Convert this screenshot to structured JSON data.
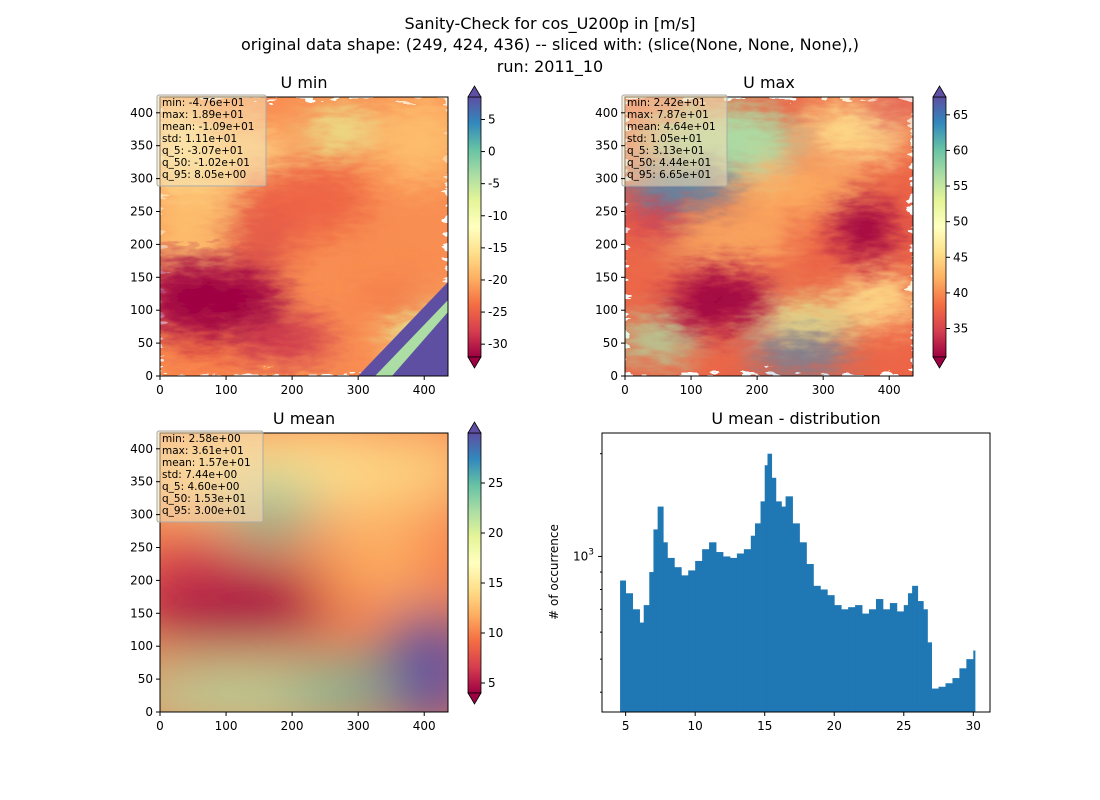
{
  "figure": {
    "title_lines": [
      "Sanity-Check for cos_U200p in [m/s]",
      "original data shape: (249, 424, 436) -- sliced with: (slice(None, None, None),)",
      "run: 2011_10"
    ]
  },
  "colormap": [
    "#9e0142",
    "#d53e4f",
    "#f46d43",
    "#fdae61",
    "#fee08b",
    "#ffffbf",
    "#e6f598",
    "#abdda4",
    "#66c2a5",
    "#3288bd",
    "#5e4fa2"
  ],
  "chart_data": [
    {
      "type": "heatmap",
      "title": "U min",
      "xlim": [
        0,
        436
      ],
      "ylim": [
        0,
        424
      ],
      "xticks": [
        "0",
        "100",
        "200",
        "300",
        "400"
      ],
      "yticks": [
        "0",
        "50",
        "100",
        "150",
        "200",
        "250",
        "300",
        "350",
        "400"
      ],
      "colorbar": {
        "min": -32,
        "max": 8.5,
        "ticks": [
          "-30",
          "-25",
          "-20",
          "-15",
          "-10",
          "-5",
          "0",
          "5"
        ],
        "tick_values": [
          -30,
          -25,
          -20,
          -15,
          -10,
          -5,
          0,
          5
        ]
      },
      "stats": [
        "min: -4.76e+01",
        "max: 1.89e+01",
        "mean: -1.09e+01",
        "std: 1.11e+01",
        "q_5: -3.07e+01",
        "q_50: -1.02e+01",
        "q_95: 8.05e+00"
      ]
    },
    {
      "type": "heatmap",
      "title": "U max",
      "xlim": [
        0,
        436
      ],
      "ylim": [
        0,
        424
      ],
      "xticks": [
        "0",
        "100",
        "200",
        "300",
        "400"
      ],
      "yticks": [
        "0",
        "50",
        "100",
        "150",
        "200",
        "250",
        "300",
        "350",
        "400"
      ],
      "colorbar": {
        "min": 31,
        "max": 67.5,
        "ticks": [
          "35",
          "40",
          "45",
          "50",
          "55",
          "60",
          "65"
        ],
        "tick_values": [
          35,
          40,
          45,
          50,
          55,
          60,
          65
        ]
      },
      "stats": [
        "min: 2.42e+01",
        "max: 7.87e+01",
        "mean: 4.64e+01",
        "std: 1.05e+01",
        "q_5: 3.13e+01",
        "q_50: 4.44e+01",
        "q_95: 6.65e+01"
      ]
    },
    {
      "type": "heatmap",
      "title": "U mean",
      "xlim": [
        0,
        436
      ],
      "ylim": [
        0,
        424
      ],
      "xticks": [
        "0",
        "100",
        "200",
        "300",
        "400"
      ],
      "yticks": [
        "0",
        "50",
        "100",
        "150",
        "200",
        "250",
        "300",
        "350",
        "400"
      ],
      "colorbar": {
        "min": 4,
        "max": 30,
        "ticks": [
          "5",
          "10",
          "15",
          "20",
          "25"
        ],
        "tick_values": [
          5,
          10,
          15,
          20,
          25
        ]
      },
      "stats": [
        "min: 2.58e+00",
        "max: 3.61e+01",
        "mean: 1.57e+01",
        "std: 7.44e+00",
        "q_5: 4.60e+00",
        "q_50: 1.53e+01",
        "q_95: 3.00e+01"
      ]
    },
    {
      "type": "bar",
      "title": "U mean - distribution",
      "ylabel": "# of occurrence",
      "log_y": true,
      "xlim": [
        3.3,
        31.2
      ],
      "ylim": [
        350,
        2300
      ],
      "xticks": [
        5,
        10,
        15,
        20,
        25,
        30
      ],
      "xtick_labels": [
        "5",
        "10",
        "15",
        "20",
        "25",
        "30"
      ],
      "ytick_value": 1000,
      "ytick_label": "10^3",
      "bar_color": "#1f77b4",
      "x": [
        4.6,
        5.0,
        5.5,
        6.0,
        6.3,
        6.7,
        7.0,
        7.3,
        7.7,
        8.0,
        8.5,
        9.0,
        9.5,
        10.0,
        10.5,
        11.0,
        11.5,
        12.0,
        12.5,
        13.0,
        13.5,
        14.0,
        14.3,
        14.7,
        15.0,
        15.2,
        15.5,
        15.8,
        16.2,
        16.5,
        17.0,
        17.5,
        18.0,
        18.5,
        19.0,
        19.5,
        20.0,
        20.5,
        21.0,
        21.5,
        22.0,
        22.5,
        23.0,
        23.5,
        24.0,
        24.5,
        25.0,
        25.3,
        25.6,
        26.0,
        26.4,
        26.7,
        27.0,
        27.5,
        28.0,
        28.5,
        29.0,
        29.5,
        30.0
      ],
      "values": [
        850,
        780,
        700,
        640,
        720,
        900,
        1200,
        1400,
        1100,
        990,
        930,
        880,
        910,
        970,
        1050,
        1100,
        1030,
        1000,
        990,
        1020,
        1050,
        1150,
        1250,
        1450,
        1850,
        2000,
        1700,
        1450,
        1400,
        1500,
        1250,
        1100,
        950,
        820,
        800,
        770,
        720,
        700,
        710,
        720,
        680,
        700,
        750,
        700,
        730,
        690,
        720,
        780,
        820,
        740,
        700,
        560,
        410,
        415,
        425,
        440,
        470,
        500,
        530
      ]
    }
  ]
}
